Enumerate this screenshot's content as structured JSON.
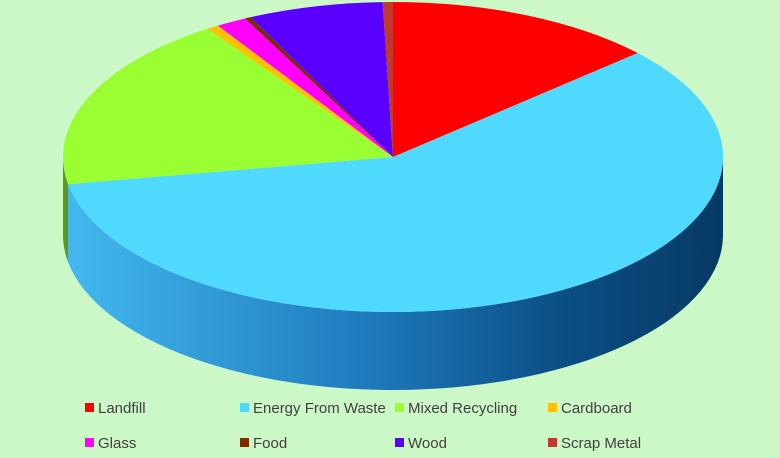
{
  "chart_data": {
    "type": "pie",
    "title": "",
    "legend_position": "bottom",
    "series": [
      {
        "label": "Landfill",
        "value": 13.3,
        "color": "#ff0000"
      },
      {
        "label": "Energy From Waste",
        "value": 58.9,
        "color": "#4fd9ff"
      },
      {
        "label": "Mixed Recycling",
        "value": 18.3,
        "color": "#99ff33"
      },
      {
        "label": "Cardboard",
        "value": 0.6,
        "color": "#ffc000"
      },
      {
        "label": "Glass",
        "value": 1.5,
        "color": "#ff00ff"
      },
      {
        "label": "Food",
        "value": 0.3,
        "color": "#7b2c00"
      },
      {
        "label": "Wood",
        "value": 6.6,
        "color": "#5a00ff"
      },
      {
        "label": "Scrap Metal",
        "value": 0.5,
        "color": "#c0392b"
      }
    ]
  }
}
